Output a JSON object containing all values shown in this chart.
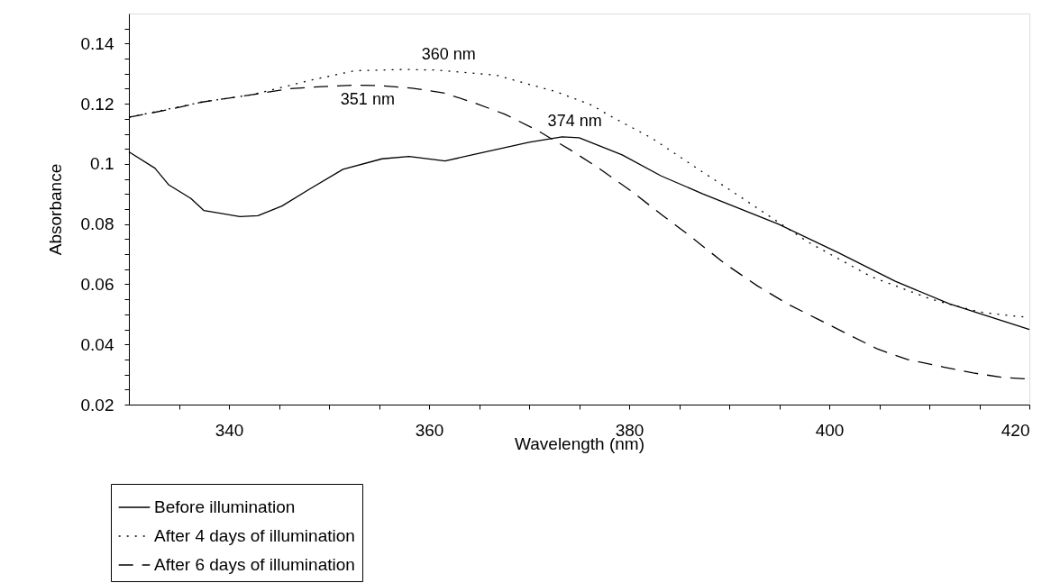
{
  "chart_data": {
    "type": "line",
    "xlabel": "Wavelength (nm)",
    "ylabel": "Absorbance",
    "xlim": [
      330,
      420
    ],
    "ylim": [
      0.02,
      0.15
    ],
    "xticks": [
      {
        "value": 335,
        "label": null
      },
      340,
      {
        "value": 345,
        "label": null
      },
      {
        "value": 350,
        "label": null
      },
      {
        "value": 355,
        "label": null
      },
      360,
      {
        "value": 365,
        "label": null
      },
      {
        "value": 370,
        "label": null
      },
      {
        "value": 375,
        "label": null
      },
      380,
      {
        "value": 385,
        "label": null
      },
      {
        "value": 390,
        "label": null
      },
      {
        "value": 395,
        "label": null
      },
      400,
      {
        "value": 405,
        "label": null
      },
      {
        "value": 410,
        "label": null
      },
      {
        "value": 415,
        "label": null
      },
      420
    ],
    "yticks": [
      0.02,
      {
        "value": 0.025,
        "label": null
      },
      {
        "value": 0.03,
        "label": null
      },
      {
        "value": 0.035,
        "label": null
      },
      0.04,
      {
        "value": 0.045,
        "label": null
      },
      {
        "value": 0.05,
        "label": null
      },
      {
        "value": 0.055,
        "label": null
      },
      0.06,
      {
        "value": 0.065,
        "label": null
      },
      {
        "value": 0.07,
        "label": null
      },
      {
        "value": 0.075,
        "label": null
      },
      0.08,
      {
        "value": 0.085,
        "label": null
      },
      {
        "value": 0.09,
        "label": null
      },
      {
        "value": 0.095,
        "label": null
      },
      {
        "value": 0.1,
        "label": "0.1"
      },
      {
        "value": 0.105,
        "label": null
      },
      {
        "value": 0.11,
        "label": null
      },
      {
        "value": 0.115,
        "label": null
      },
      0.12,
      {
        "value": 0.125,
        "label": null
      },
      {
        "value": 0.13,
        "label": null
      },
      {
        "value": 0.135,
        "label": null
      },
      0.14,
      {
        "value": 0.145,
        "label": null
      }
    ],
    "grid": false,
    "legend": "bottom left",
    "marker": "none",
    "series": [
      {
        "name": "Before illumination",
        "color": "#000000",
        "line_style": "solid",
        "x": [
          330,
          332.6,
          334,
          336.2,
          337.5,
          341.1,
          342.9,
          345.3,
          348,
          351.4,
          355.3,
          358,
          361.6,
          364.6,
          370,
          373.3,
          375,
          379.3,
          383.2,
          387.4,
          394.9,
          400.9,
          406.6,
          412,
          420
        ],
        "values": [
          0.104,
          0.0986,
          0.093,
          0.0885,
          0.0845,
          0.0825,
          0.0828,
          0.086,
          0.0915,
          0.0982,
          0.1017,
          0.1025,
          0.101,
          0.1032,
          0.1072,
          0.109,
          0.1087,
          0.103,
          0.096,
          0.09,
          0.08,
          0.0705,
          0.061,
          0.0535,
          0.045
        ]
      },
      {
        "name": "After 4 days of illumination",
        "color": "#000000",
        "line_style": "dotted",
        "x": [
          330,
          337.2,
          342.3,
          348.4,
          352.6,
          357.7,
          360.7,
          366.7,
          372.7,
          376.3,
          377.8,
          382.3,
          386.8,
          391.6,
          397.9,
          404.2,
          410.2,
          415,
          418.2,
          420
        ],
        "values": [
          0.1155,
          0.1205,
          0.123,
          0.128,
          0.131,
          0.1314,
          0.1312,
          0.1295,
          0.124,
          0.1195,
          0.1165,
          0.1085,
          0.0985,
          0.088,
          0.074,
          0.0625,
          0.055,
          0.0508,
          0.0495,
          0.049
        ]
      },
      {
        "name": "After 6 days of illumination",
        "color": "#000000",
        "line_style": "dashed",
        "x": [
          330,
          334.2,
          337.2,
          342.3,
          346,
          349.3,
          352.6,
          355.2,
          358.3,
          361.6,
          364.6,
          367.6,
          370.9,
          374.2,
          377,
          380.2,
          383.3,
          386.3,
          389.5,
          392.8,
          395.8,
          398.8,
          402.1,
          404.8,
          407.8,
          411.4,
          414.4,
          417.4,
          420
        ],
        "values": [
          0.1155,
          0.1182,
          0.1205,
          0.123,
          0.125,
          0.1257,
          0.1262,
          0.126,
          0.1252,
          0.1235,
          0.1202,
          0.1165,
          0.111,
          0.1045,
          0.0985,
          0.091,
          0.083,
          0.0755,
          0.067,
          0.0595,
          0.0535,
          0.0485,
          0.043,
          0.0385,
          0.035,
          0.0325,
          0.0305,
          0.029,
          0.0285
        ]
      }
    ],
    "annotations": [
      {
        "text": "360 nm",
        "x": 360.7,
        "y": 0.1312
      },
      {
        "text": "351 nm",
        "x": 352.6,
        "y": 0.1262
      },
      {
        "text": "374 nm",
        "x": 373.3,
        "y": 0.109
      }
    ]
  }
}
